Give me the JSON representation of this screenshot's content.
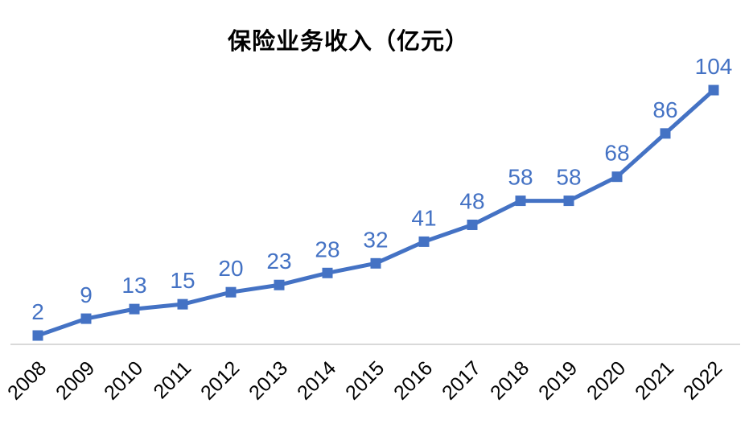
{
  "chart_data": {
    "type": "line",
    "title": "保险业务收入（亿元）",
    "categories": [
      "2008",
      "2009",
      "2010",
      "2011",
      "2012",
      "2013",
      "2014",
      "2015",
      "2016",
      "2017",
      "2018",
      "2019",
      "2020",
      "2021",
      "2022"
    ],
    "values": [
      2,
      9,
      13,
      15,
      20,
      23,
      28,
      32,
      41,
      48,
      58,
      58,
      68,
      86,
      104
    ],
    "xlabel": "",
    "ylabel": "",
    "ylim": [
      0,
      110
    ],
    "grid": false,
    "legend": "none",
    "data_labels": true,
    "marker_shape": "square",
    "tick_label_rotation": -45,
    "colors": {
      "line": "#4472C4",
      "marker": "#4472C4",
      "data_label": "#4472C4",
      "tick_label": "#000000",
      "title": "#000000",
      "axis_line": "#D9D9D9",
      "background": "#FFFFFF"
    }
  }
}
